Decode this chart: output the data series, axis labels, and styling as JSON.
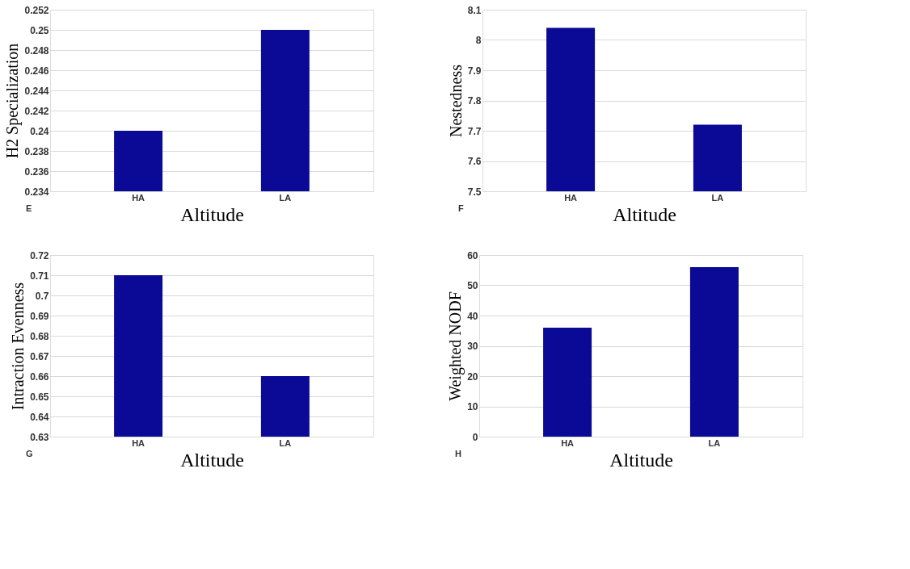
{
  "chart_data": [
    {
      "type": "bar",
      "categories": [
        "HA",
        "LA"
      ],
      "values": [
        0.24,
        0.25
      ],
      "color": "#0a0a96",
      "xlabel": "Altitude",
      "ylabel": "H2 Specialization",
      "ylim": [
        0.234,
        0.252
      ],
      "yticks": [
        0.234,
        0.236,
        0.238,
        0.24,
        0.242,
        0.244,
        0.246,
        0.248,
        0.25,
        0.252
      ],
      "grid": "y",
      "annotations": [
        "E"
      ]
    },
    {
      "type": "bar",
      "categories": [
        "HA",
        "LA"
      ],
      "values": [
        8.04,
        7.72
      ],
      "color": "#0a0a96",
      "xlabel": "Altitude",
      "ylabel": "Nestedness",
      "ylim": [
        7.5,
        8.1
      ],
      "yticks": [
        7.5,
        7.6,
        7.7,
        7.8,
        7.9,
        8,
        8.1
      ],
      "grid": "y",
      "annotations": [
        "F"
      ]
    },
    {
      "type": "bar",
      "categories": [
        "HA",
        "LA"
      ],
      "values": [
        0.71,
        0.66
      ],
      "color": "#0a0a96",
      "xlabel": "Altitude",
      "ylabel": "Intraction Evenness",
      "ylim": [
        0.63,
        0.72
      ],
      "yticks": [
        0.63,
        0.64,
        0.65,
        0.66,
        0.67,
        0.68,
        0.69,
        0.7,
        0.71,
        0.72
      ],
      "grid": "y",
      "annotations": [
        "G"
      ]
    },
    {
      "type": "bar",
      "categories": [
        "HA",
        "LA"
      ],
      "values": [
        36,
        56
      ],
      "color": "#0a0a96",
      "xlabel": "Altitude",
      "ylabel": "Weighted NODF",
      "ylim": [
        0,
        60
      ],
      "yticks": [
        0,
        10,
        20,
        30,
        40,
        50,
        60
      ],
      "grid": "y",
      "annotations": [
        "H"
      ]
    }
  ]
}
